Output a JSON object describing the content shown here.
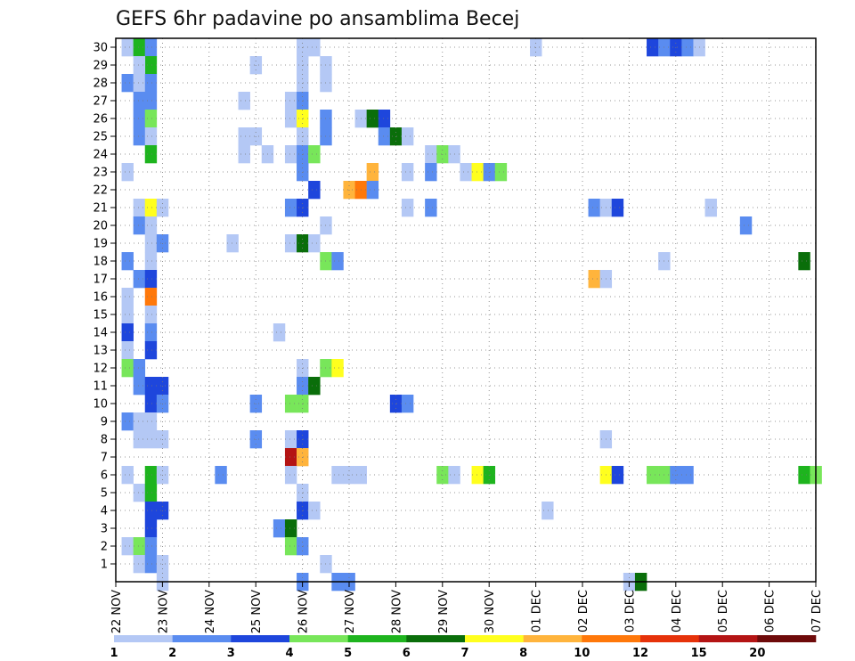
{
  "chart_data": {
    "type": "heatmap",
    "title": "GEFS 6hr padavine po ansamblima Becej",
    "xlabel": "",
    "ylabel": "",
    "x_tick_labels": [
      "22 NOV",
      "23 NOV",
      "24 NOV",
      "25 NOV",
      "26 NOV",
      "27 NOV",
      "28 NOV",
      "29 NOV",
      "30 NOV",
      "01 DEC",
      "02 DEC",
      "03 DEC",
      "04 DEC",
      "05 DEC",
      "06 DEC",
      "07 DEC"
    ],
    "y_tick_labels": [
      "1",
      "2",
      "3",
      "4",
      "5",
      "6",
      "7",
      "8",
      "9",
      "10",
      "11",
      "12",
      "13",
      "14",
      "15",
      "16",
      "17",
      "18",
      "19",
      "20",
      "21",
      "22",
      "23",
      "24",
      "25",
      "26",
      "27",
      "28",
      "29",
      "30"
    ],
    "xlim": [
      0,
      60
    ],
    "ylim": [
      0,
      30
    ],
    "time_step_hours": 6,
    "grid": true,
    "legend_placement": "bottom",
    "legend_labels": [
      "1",
      "2",
      "3",
      "4",
      "5",
      "6",
      "7",
      "8",
      "10",
      "12",
      "15",
      "20"
    ],
    "legend_colors": [
      "#b4c8f5",
      "#5a8cf0",
      "#1e46dc",
      "#78e65a",
      "#1eb41e",
      "#0a6e0a",
      "#ffff1e",
      "#ffb43c",
      "#ff780a",
      "#e6320a",
      "#b41414",
      "#6e0a0a"
    ],
    "colors": {
      "1": "#b4c8f5",
      "2": "#5a8cf0",
      "3": "#1e46dc",
      "4": "#78e65a",
      "5": "#1eb41e",
      "6": "#0a6e0a",
      "7": "#ffff1e",
      "8": "#ffb43c",
      "10": "#ff780a",
      "12": "#e6320a",
      "15": "#b41414",
      "20": "#6e0a0a"
    },
    "cells_description": "each cell: [time_step_index, member, precipitation_class]",
    "cells": [
      [
        1,
        30,
        1
      ],
      [
        2,
        30,
        5
      ],
      [
        3,
        30,
        2
      ],
      [
        16,
        30,
        1
      ],
      [
        17,
        30,
        1
      ],
      [
        36,
        30,
        1
      ],
      [
        46,
        30,
        3
      ],
      [
        47,
        30,
        2
      ],
      [
        48,
        30,
        3
      ],
      [
        49,
        30,
        2
      ],
      [
        50,
        30,
        1
      ],
      [
        3,
        29,
        5
      ],
      [
        2,
        29,
        1
      ],
      [
        12,
        29,
        1
      ],
      [
        16,
        29,
        1
      ],
      [
        18,
        29,
        1
      ],
      [
        1,
        28,
        2
      ],
      [
        2,
        28,
        1
      ],
      [
        3,
        28,
        2
      ],
      [
        16,
        28,
        1
      ],
      [
        18,
        28,
        1
      ],
      [
        2,
        27,
        2
      ],
      [
        3,
        27,
        2
      ],
      [
        11,
        27,
        1
      ],
      [
        15,
        27,
        1
      ],
      [
        16,
        27,
        2
      ],
      [
        2,
        26,
        2
      ],
      [
        3,
        26,
        4
      ],
      [
        15,
        26,
        1
      ],
      [
        16,
        26,
        7
      ],
      [
        18,
        26,
        2
      ],
      [
        21,
        26,
        1
      ],
      [
        22,
        26,
        6
      ],
      [
        23,
        26,
        3
      ],
      [
        2,
        25,
        2
      ],
      [
        3,
        25,
        1
      ],
      [
        11,
        25,
        1
      ],
      [
        12,
        25,
        1
      ],
      [
        16,
        25,
        1
      ],
      [
        18,
        25,
        2
      ],
      [
        23,
        25,
        2
      ],
      [
        24,
        25,
        6
      ],
      [
        25,
        25,
        1
      ],
      [
        3,
        24,
        5
      ],
      [
        11,
        24,
        1
      ],
      [
        13,
        24,
        1
      ],
      [
        15,
        24,
        1
      ],
      [
        16,
        24,
        2
      ],
      [
        17,
        24,
        4
      ],
      [
        27,
        24,
        1
      ],
      [
        28,
        24,
        4
      ],
      [
        29,
        24,
        1
      ],
      [
        1,
        23,
        1
      ],
      [
        16,
        23,
        2
      ],
      [
        22,
        23,
        8
      ],
      [
        25,
        23,
        1
      ],
      [
        27,
        23,
        2
      ],
      [
        30,
        23,
        1
      ],
      [
        31,
        23,
        7
      ],
      [
        32,
        23,
        2
      ],
      [
        33,
        23,
        4
      ],
      [
        17,
        22,
        3
      ],
      [
        20,
        22,
        8
      ],
      [
        21,
        22,
        10
      ],
      [
        22,
        22,
        2
      ],
      [
        2,
        21,
        1
      ],
      [
        3,
        21,
        7
      ],
      [
        4,
        21,
        1
      ],
      [
        15,
        21,
        2
      ],
      [
        16,
        21,
        3
      ],
      [
        25,
        21,
        1
      ],
      [
        27,
        21,
        2
      ],
      [
        41,
        21,
        2
      ],
      [
        42,
        21,
        1
      ],
      [
        43,
        21,
        3
      ],
      [
        51,
        21,
        1
      ],
      [
        2,
        20,
        2
      ],
      [
        3,
        20,
        1
      ],
      [
        18,
        20,
        1
      ],
      [
        54,
        20,
        2
      ],
      [
        3,
        19,
        1
      ],
      [
        4,
        19,
        2
      ],
      [
        10,
        19,
        1
      ],
      [
        15,
        19,
        1
      ],
      [
        16,
        19,
        6
      ],
      [
        17,
        19,
        1
      ],
      [
        1,
        18,
        2
      ],
      [
        3,
        18,
        1
      ],
      [
        18,
        18,
        4
      ],
      [
        19,
        18,
        2
      ],
      [
        47,
        18,
        1
      ],
      [
        59,
        18,
        6
      ],
      [
        2,
        17,
        2
      ],
      [
        3,
        17,
        3
      ],
      [
        41,
        17,
        8
      ],
      [
        42,
        17,
        1
      ],
      [
        1,
        16,
        1
      ],
      [
        3,
        16,
        10
      ],
      [
        1,
        15,
        1
      ],
      [
        3,
        15,
        1
      ],
      [
        1,
        14,
        3
      ],
      [
        3,
        14,
        2
      ],
      [
        14,
        14,
        1
      ],
      [
        1,
        13,
        1
      ],
      [
        3,
        13,
        3
      ],
      [
        1,
        12,
        4
      ],
      [
        2,
        12,
        2
      ],
      [
        16,
        12,
        1
      ],
      [
        18,
        12,
        4
      ],
      [
        19,
        12,
        7
      ],
      [
        2,
        11,
        2
      ],
      [
        3,
        11,
        3
      ],
      [
        4,
        11,
        3
      ],
      [
        16,
        11,
        2
      ],
      [
        17,
        11,
        6
      ],
      [
        3,
        10,
        3
      ],
      [
        4,
        10,
        2
      ],
      [
        12,
        10,
        2
      ],
      [
        15,
        10,
        4
      ],
      [
        16,
        10,
        4
      ],
      [
        24,
        10,
        3
      ],
      [
        25,
        10,
        2
      ],
      [
        1,
        9,
        2
      ],
      [
        2,
        9,
        1
      ],
      [
        3,
        9,
        1
      ],
      [
        2,
        8,
        1
      ],
      [
        3,
        8,
        1
      ],
      [
        4,
        8,
        1
      ],
      [
        12,
        8,
        2
      ],
      [
        15,
        8,
        1
      ],
      [
        16,
        8,
        3
      ],
      [
        42,
        8,
        1
      ],
      [
        15,
        7,
        15
      ],
      [
        16,
        7,
        8
      ],
      [
        1,
        6,
        1
      ],
      [
        3,
        6,
        5
      ],
      [
        4,
        6,
        1
      ],
      [
        9,
        6,
        2
      ],
      [
        15,
        6,
        1
      ],
      [
        19,
        6,
        1
      ],
      [
        20,
        6,
        1
      ],
      [
        21,
        6,
        1
      ],
      [
        28,
        6,
        4
      ],
      [
        29,
        6,
        1
      ],
      [
        31,
        6,
        7
      ],
      [
        32,
        6,
        5
      ],
      [
        42,
        6,
        7
      ],
      [
        43,
        6,
        3
      ],
      [
        46,
        6,
        4
      ],
      [
        47,
        6,
        4
      ],
      [
        48,
        6,
        2
      ],
      [
        49,
        6,
        2
      ],
      [
        59,
        6,
        5
      ],
      [
        60,
        6,
        4
      ],
      [
        2,
        5,
        1
      ],
      [
        3,
        5,
        5
      ],
      [
        16,
        5,
        1
      ],
      [
        3,
        4,
        3
      ],
      [
        4,
        4,
        3
      ],
      [
        16,
        4,
        3
      ],
      [
        17,
        4,
        1
      ],
      [
        37,
        4,
        1
      ],
      [
        3,
        3,
        3
      ],
      [
        14,
        3,
        2
      ],
      [
        15,
        3,
        6
      ],
      [
        1,
        2,
        1
      ],
      [
        2,
        2,
        4
      ],
      [
        3,
        2,
        2
      ],
      [
        15,
        2,
        4
      ],
      [
        16,
        2,
        2
      ],
      [
        2,
        1,
        1
      ],
      [
        3,
        1,
        2
      ],
      [
        4,
        1,
        1
      ],
      [
        18,
        1,
        1
      ],
      [
        4,
        0,
        1
      ],
      [
        16,
        0,
        2
      ],
      [
        19,
        0,
        2
      ],
      [
        20,
        0,
        2
      ],
      [
        44,
        0,
        1
      ],
      [
        45,
        0,
        6
      ]
    ]
  }
}
